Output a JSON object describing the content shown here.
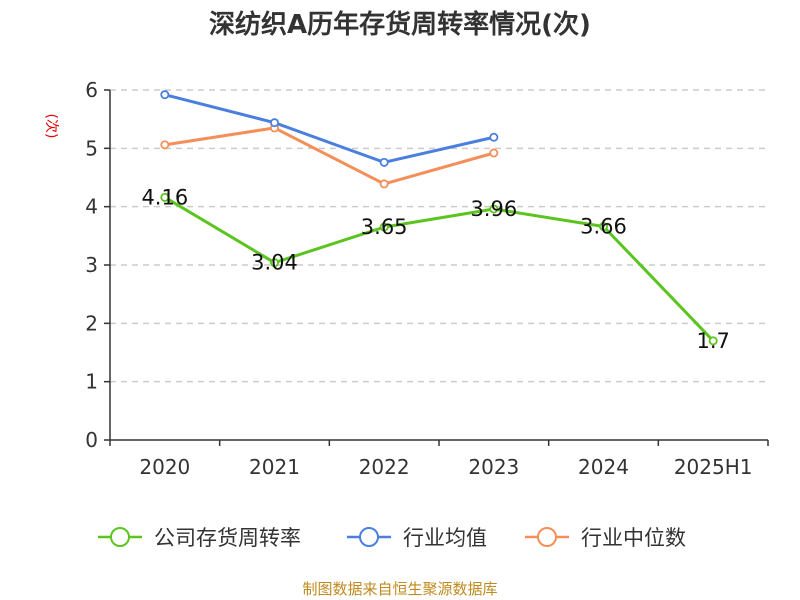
{
  "chart_data": {
    "type": "line",
    "title": "深纺织A历年存货周转率情况(次)",
    "ylabel": "(次)",
    "xlabel": "",
    "categories": [
      "2020",
      "2021",
      "2022",
      "2023",
      "2024",
      "2025H1"
    ],
    "ylim": [
      0,
      6
    ],
    "yticks": [
      0,
      1,
      2,
      3,
      4,
      5,
      6
    ],
    "grid": true,
    "legend_position": "bottom",
    "series": [
      {
        "name": "公司存货周转率",
        "color": "#5cc41f",
        "values": [
          4.16,
          3.04,
          3.65,
          3.96,
          3.66,
          1.7
        ],
        "labels": [
          "4.16",
          "3.04",
          "3.65",
          "3.96",
          "3.66",
          "1.7"
        ]
      },
      {
        "name": "行业均值",
        "color": "#4a7fde",
        "values": [
          5.92,
          5.44,
          4.76,
          5.19,
          null,
          null
        ]
      },
      {
        "name": "行业中位数",
        "color": "#f58f5a",
        "values": [
          5.06,
          5.35,
          4.39,
          4.92,
          null,
          null
        ]
      }
    ],
    "source": "制图数据来自恒生聚源数据库"
  }
}
